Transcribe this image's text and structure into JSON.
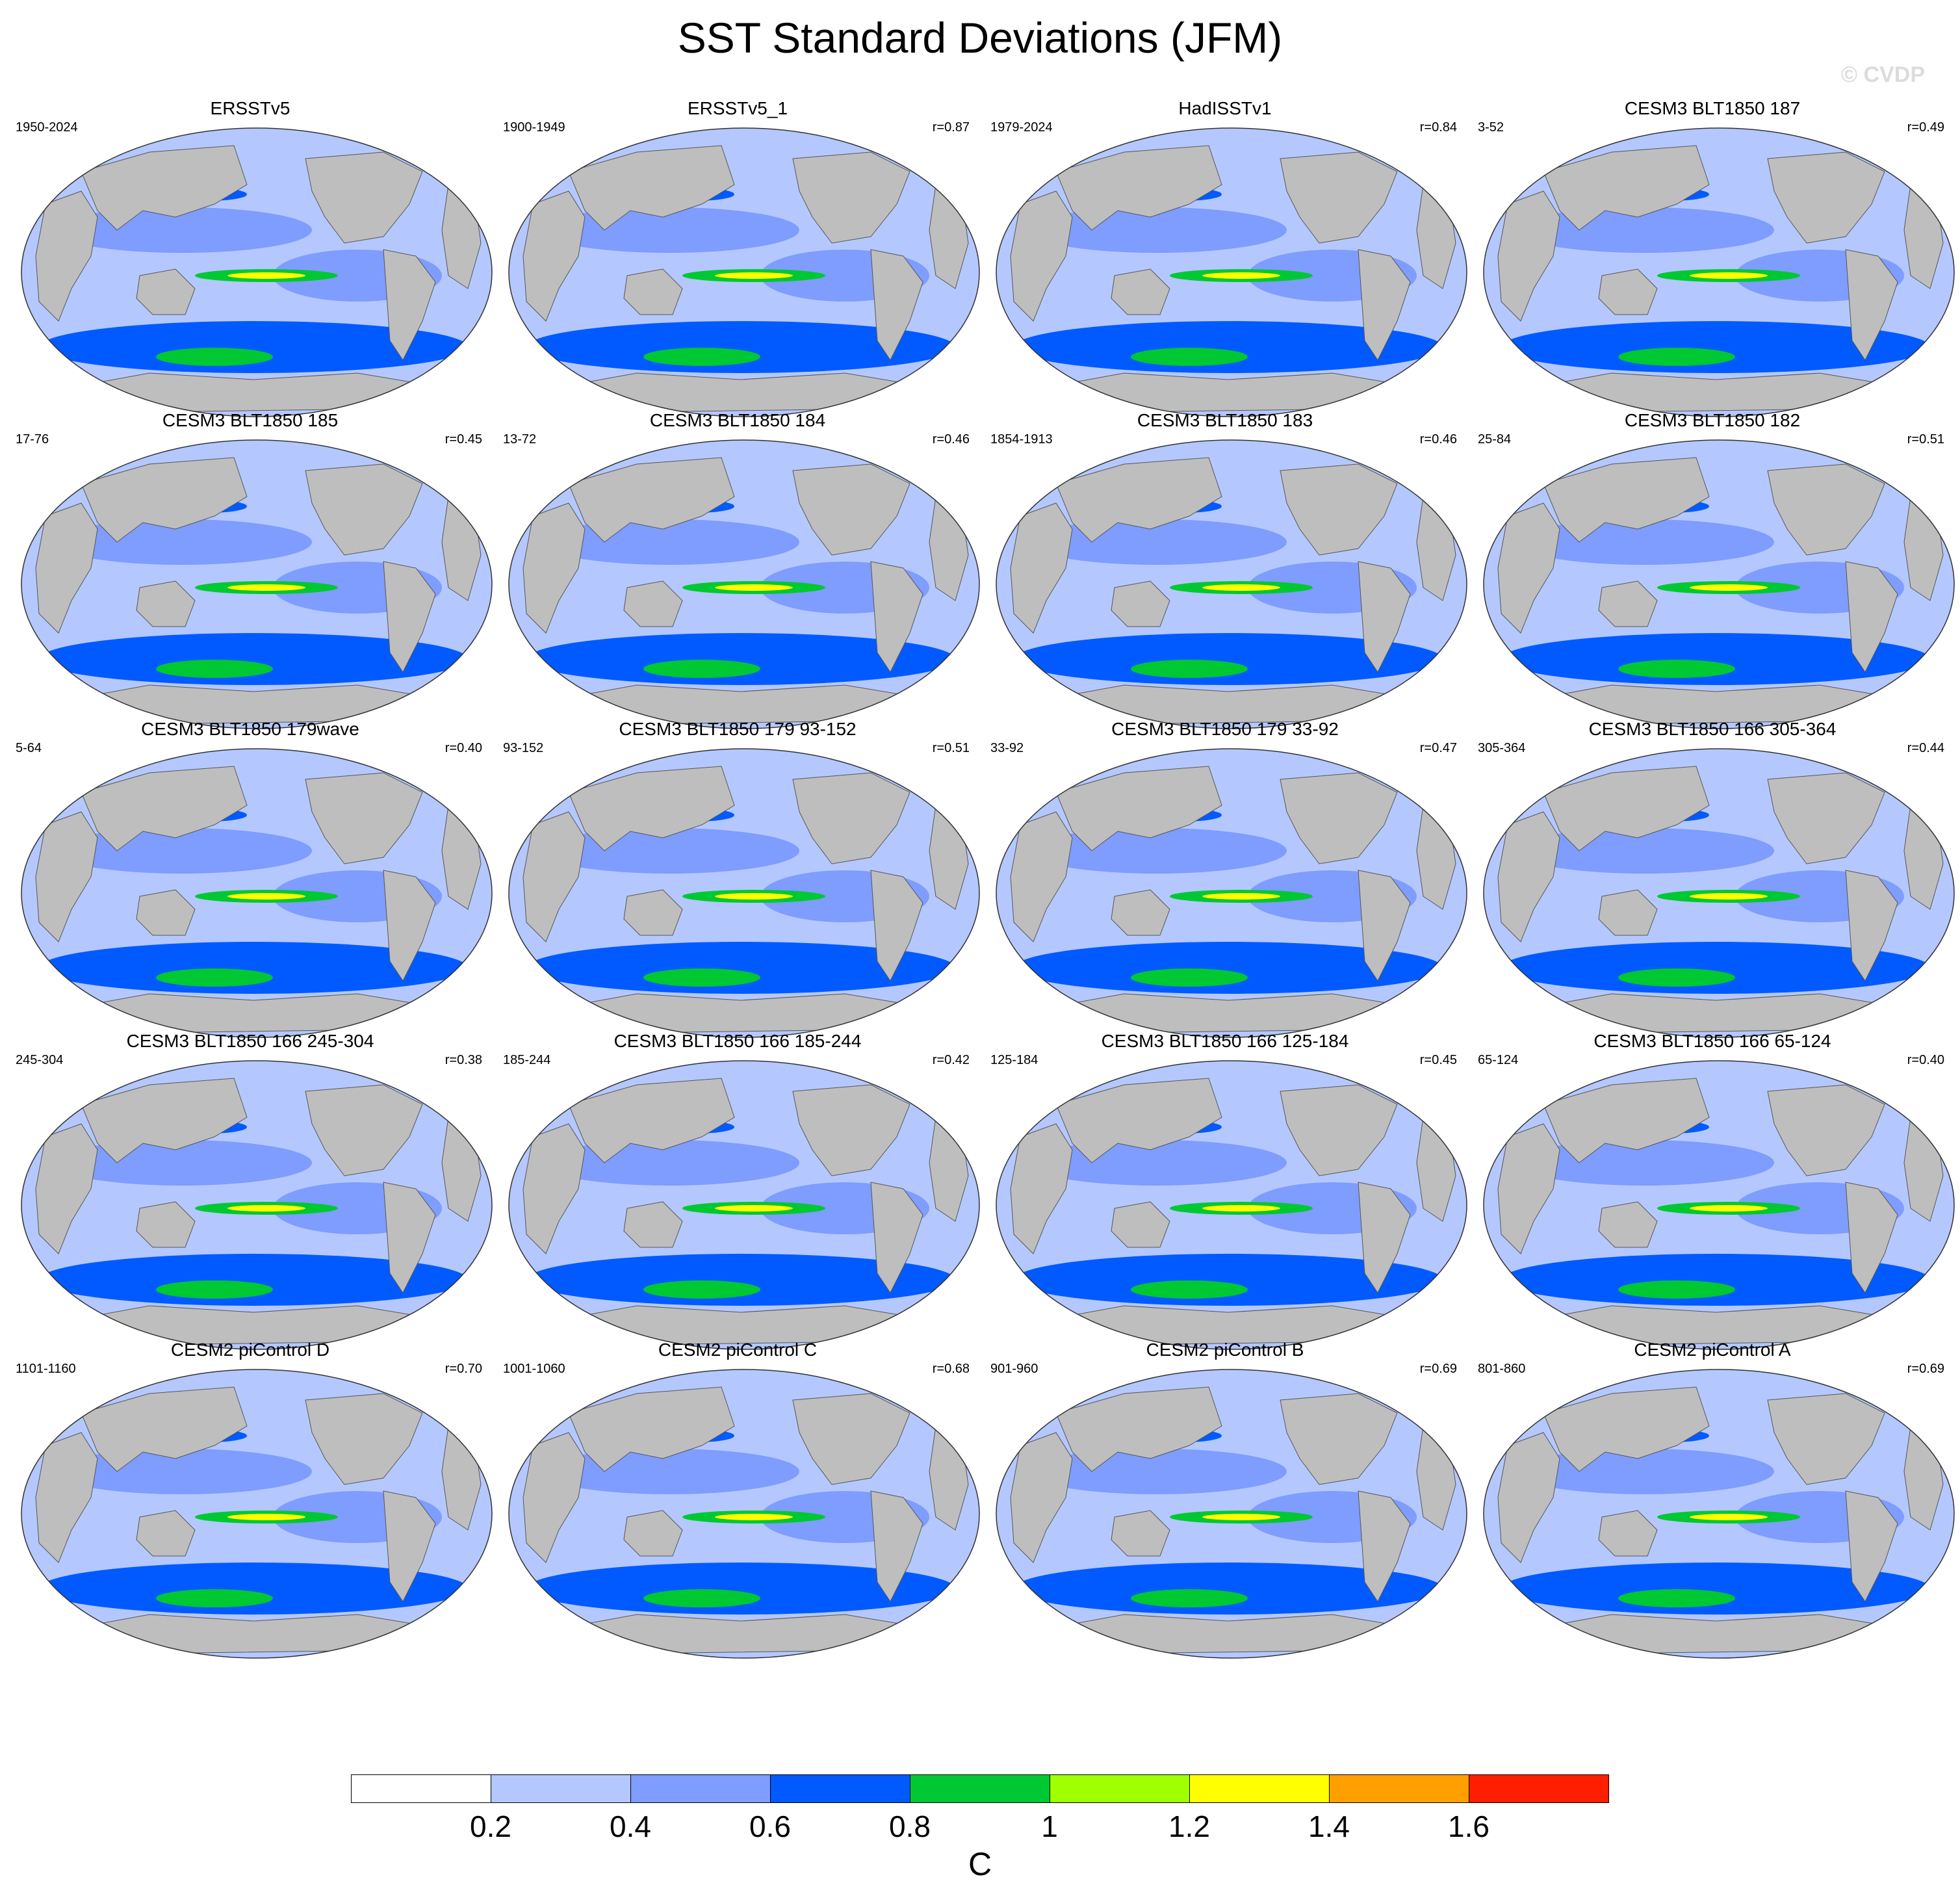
{
  "title": "SST Standard Deviations (JFM)",
  "watermark": "© CVDP",
  "colorbar": {
    "units": "C",
    "ticks": [
      "0.2",
      "0.4",
      "0.6",
      "0.8",
      "1",
      "1.2",
      "1.4",
      "1.6"
    ],
    "colors": [
      "#ffffff",
      "#b4c8ff",
      "#7f9cff",
      "#005aff",
      "#00c832",
      "#a0ff00",
      "#ffff00",
      "#ffa000",
      "#ff1e00"
    ]
  },
  "map_colors": {
    "land": "#bebebe",
    "ocean": "#b4c8ff"
  },
  "panels": [
    {
      "title": "ERSSTv5",
      "period": "1950-2024",
      "corr": ""
    },
    {
      "title": "ERSSTv5_1",
      "period": "1900-1949",
      "corr": "r=0.87"
    },
    {
      "title": "HadISSTv1",
      "period": "1979-2024",
      "corr": "r=0.84"
    },
    {
      "title": "CESM3 BLT1850 187",
      "period": "3-52",
      "corr": "r=0.49"
    },
    {
      "title": "CESM3 BLT1850 185",
      "period": "17-76",
      "corr": "r=0.45"
    },
    {
      "title": "CESM3 BLT1850 184",
      "period": "13-72",
      "corr": "r=0.46"
    },
    {
      "title": "CESM3 BLT1850 183",
      "period": "1854-1913",
      "corr": "r=0.46"
    },
    {
      "title": "CESM3 BLT1850 182",
      "period": "25-84",
      "corr": "r=0.51"
    },
    {
      "title": "CESM3 BLT1850 179wave",
      "period": "5-64",
      "corr": "r=0.40"
    },
    {
      "title": "CESM3 BLT1850 179 93-152",
      "period": "93-152",
      "corr": "r=0.51"
    },
    {
      "title": "CESM3 BLT1850 179 33-92",
      "period": "33-92",
      "corr": "r=0.47"
    },
    {
      "title": "CESM3 BLT1850 166 305-364",
      "period": "305-364",
      "corr": "r=0.44"
    },
    {
      "title": "CESM3 BLT1850 166 245-304",
      "period": "245-304",
      "corr": "r=0.38"
    },
    {
      "title": "CESM3 BLT1850 166 185-244",
      "period": "185-244",
      "corr": "r=0.42"
    },
    {
      "title": "CESM3 BLT1850 166 125-184",
      "period": "125-184",
      "corr": "r=0.45"
    },
    {
      "title": "CESM3 BLT1850 166 65-124",
      "period": "65-124",
      "corr": "r=0.40"
    },
    {
      "title": "CESM2 piControl D",
      "period": "1101-1160",
      "corr": "r=0.70"
    },
    {
      "title": "CESM2 piControl C",
      "period": "1001-1060",
      "corr": "r=0.68"
    },
    {
      "title": "CESM2 piControl B",
      "period": "901-960",
      "corr": "r=0.69"
    },
    {
      "title": "CESM2 piControl A",
      "period": "801-860",
      "corr": "r=0.69"
    }
  ]
}
